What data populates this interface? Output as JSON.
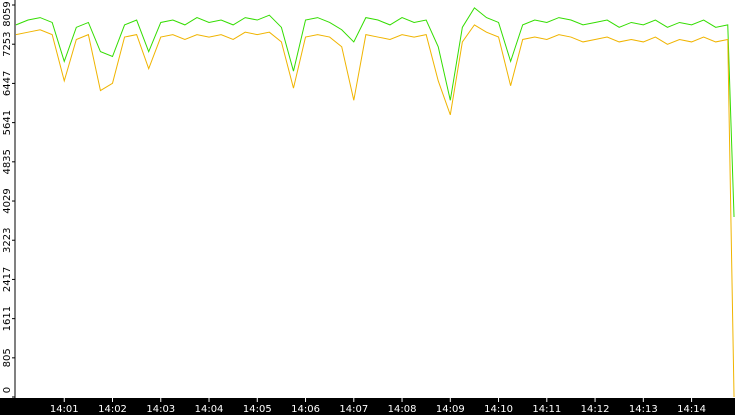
{
  "chart_data": {
    "type": "line",
    "x": [
      0,
      0.25,
      0.5,
      0.75,
      1,
      1.25,
      1.5,
      1.75,
      2,
      2.25,
      2.5,
      2.75,
      3,
      3.25,
      3.5,
      3.75,
      4,
      4.25,
      4.5,
      4.75,
      5,
      5.25,
      5.5,
      5.75,
      6,
      6.25,
      6.5,
      6.75,
      7,
      7.25,
      7.5,
      7.75,
      8,
      8.25,
      8.5,
      8.75,
      9,
      9.25,
      9.5,
      9.75,
      10,
      10.25,
      10.5,
      10.75,
      11,
      11.25,
      11.5,
      11.75,
      12,
      12.25,
      12.5,
      12.75,
      13,
      13.25,
      13.5,
      13.75,
      14,
      14.25,
      14.5,
      14.75,
      14.88
    ],
    "series": [
      {
        "color": "#33dd00",
        "values": [
          7650,
          7750,
          7800,
          7700,
          6900,
          7600,
          7700,
          7100,
          7000,
          7650,
          7750,
          7100,
          7700,
          7750,
          7650,
          7800,
          7700,
          7750,
          7650,
          7800,
          7750,
          7850,
          7600,
          6700,
          7750,
          7800,
          7700,
          7550,
          7300,
          7800,
          7750,
          7650,
          7800,
          7700,
          7750,
          7200,
          6100,
          7600,
          8000,
          7800,
          7700,
          6900,
          7650,
          7750,
          7700,
          7800,
          7750,
          7650,
          7700,
          7750,
          7600,
          7700,
          7650,
          7750,
          7600,
          7700,
          7650,
          7750,
          7600,
          7650,
          3700
        ]
      },
      {
        "color": "#f0b400",
        "values": [
          7450,
          7500,
          7550,
          7450,
          6500,
          7350,
          7450,
          6300,
          6450,
          7400,
          7450,
          6750,
          7400,
          7450,
          7350,
          7450,
          7400,
          7450,
          7350,
          7500,
          7450,
          7500,
          7300,
          6350,
          7400,
          7450,
          7400,
          7200,
          6100,
          7450,
          7400,
          7350,
          7450,
          7400,
          7450,
          6500,
          5800,
          7300,
          7650,
          7500,
          7400,
          6400,
          7350,
          7400,
          7350,
          7450,
          7400,
          7300,
          7350,
          7400,
          7300,
          7350,
          7300,
          7400,
          7250,
          7350,
          7300,
          7400,
          7300,
          7350,
          0
        ]
      }
    ],
    "xlim": [
      0,
      14.9
    ],
    "xticks": [
      {
        "value": 1,
        "label": "14:01"
      },
      {
        "value": 2,
        "label": "14:02"
      },
      {
        "value": 3,
        "label": "14:03"
      },
      {
        "value": 4,
        "label": "14:04"
      },
      {
        "value": 5,
        "label": "14:05"
      },
      {
        "value": 6,
        "label": "14:06"
      },
      {
        "value": 7,
        "label": "14:07"
      },
      {
        "value": 8,
        "label": "14:08"
      },
      {
        "value": 9,
        "label": "14:09"
      },
      {
        "value": 10,
        "label": "14:10"
      },
      {
        "value": 11,
        "label": "14:11"
      },
      {
        "value": 12,
        "label": "14:12"
      },
      {
        "value": 13,
        "label": "14:13"
      },
      {
        "value": 14,
        "label": "14:14"
      }
    ],
    "ylim": [
      0,
      8059
    ],
    "yticks": [
      0,
      805,
      1611,
      2417,
      3223,
      4029,
      4835,
      5641,
      6447,
      7253,
      8059
    ]
  }
}
